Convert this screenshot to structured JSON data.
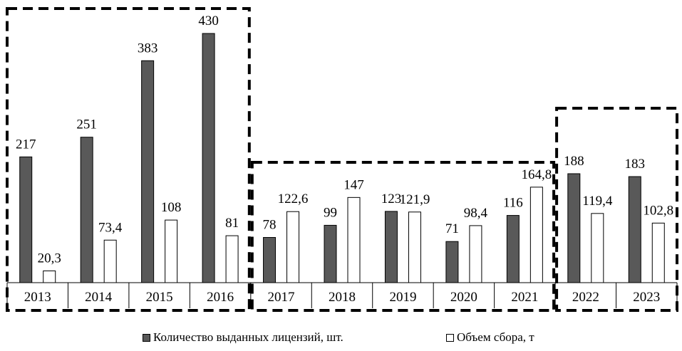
{
  "chart_data": {
    "type": "bar",
    "categories": [
      "2013",
      "2014",
      "2015",
      "2016",
      "2017",
      "2018",
      "2019",
      "2020",
      "2021",
      "2022",
      "2023"
    ],
    "series": [
      {
        "name": "Количество выданных лицензий, шт.",
        "values": [
          217,
          251,
          383,
          430,
          78,
          99,
          123,
          71,
          116,
          188,
          183
        ],
        "labels": [
          "217",
          "251",
          "383",
          "430",
          "78",
          "99",
          "123",
          "71",
          "116",
          "188",
          "183"
        ],
        "color": "#595959"
      },
      {
        "name": "Объем сбора, т",
        "values": [
          20.3,
          73.4,
          108,
          81,
          122.6,
          147,
          121.9,
          98.4,
          164.8,
          119.4,
          102.8
        ],
        "labels": [
          "20,3",
          "73,4",
          "108",
          "81",
          "122,6",
          "147",
          "121,9",
          "98,4",
          "164,8",
          "119,4",
          "102,8"
        ],
        "color": "#ffffff"
      }
    ],
    "groups": [
      {
        "categories": [
          "2013",
          "2014",
          "2015",
          "2016"
        ]
      },
      {
        "categories": [
          "2017",
          "2018",
          "2019",
          "2020",
          "2021"
        ]
      },
      {
        "categories": [
          "2022",
          "2023"
        ]
      }
    ],
    "legend_position": "bottom",
    "grid": false
  }
}
